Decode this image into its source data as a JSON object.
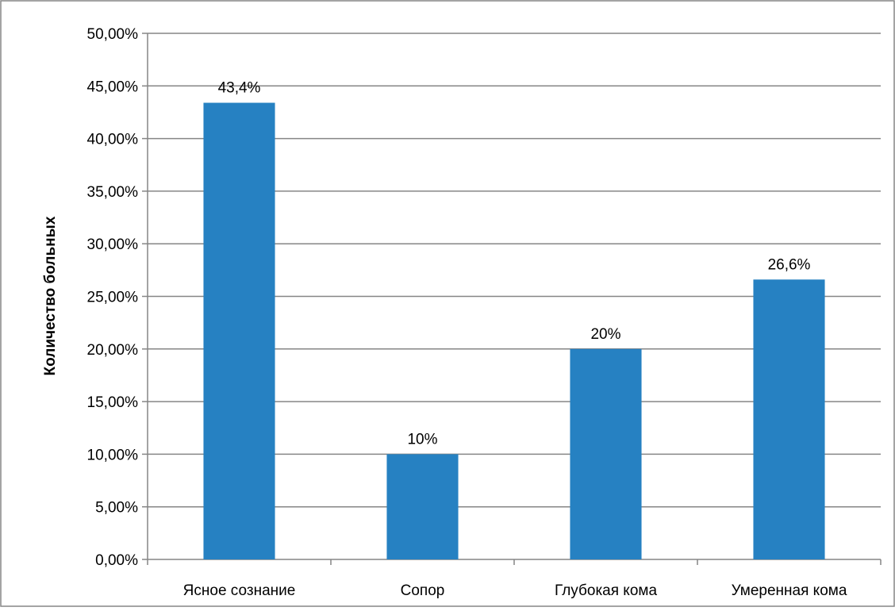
{
  "chart_data": {
    "type": "bar",
    "title": "",
    "xlabel": "",
    "ylabel": "Количество больных",
    "categories": [
      "Ясное сознание",
      "Сопор",
      "Глубокая кома",
      "Умеренная кома"
    ],
    "values": [
      43.4,
      10,
      20,
      26.6
    ],
    "data_labels": [
      "43,4%",
      "10%",
      "20%",
      "26,6%"
    ],
    "ylim": [
      0,
      50
    ],
    "yticks": [
      0,
      5,
      10,
      15,
      20,
      25,
      30,
      35,
      40,
      45,
      50
    ],
    "ytick_labels": [
      "0,00%",
      "5,00%",
      "10,00%",
      "15,00%",
      "20,00%",
      "25,00%",
      "30,00%",
      "35,00%",
      "40,00%",
      "45,00%",
      "50,00%"
    ],
    "grid": true,
    "legend": "none",
    "colors": {
      "bar": "#2681c2",
      "grid": "#868686",
      "text": "#000000",
      "border": "#868686"
    }
  }
}
